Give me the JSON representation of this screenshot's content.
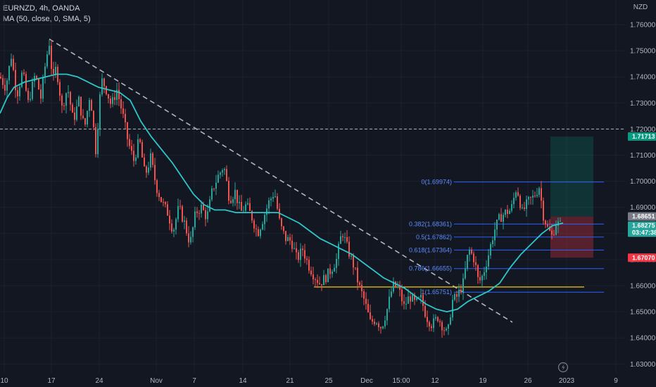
{
  "header": {
    "symbol_line": "EURNZD, 4h, OANDA",
    "indicator_line": "MA (50, close, 0, SMA, 5)",
    "currency": "NZD"
  },
  "chart_data": {
    "type": "candlestick",
    "symbol": "EURNZD",
    "timeframe": "4h",
    "source": "OANDA",
    "currency": "NZD",
    "ylim": [
      1.625,
      1.765
    ],
    "y_ticks": [
      "1.76000",
      "1.75000",
      "1.74000",
      "1.73000",
      "1.72000",
      "1.71000",
      "1.70000",
      "1.69000",
      "1.68000",
      "1.67000",
      "1.66000",
      "1.65000",
      "1.64000",
      "1.63000"
    ],
    "x_ticks": [
      "10",
      "17",
      "24",
      "Nov",
      "7",
      "14",
      "21",
      "25",
      "Dec",
      "15:00",
      "12",
      "19",
      "26",
      "2023",
      "9"
    ],
    "close_path": [
      [
        0,
        1.74
      ],
      [
        8,
        1.736
      ],
      [
        16,
        1.748
      ],
      [
        24,
        1.733
      ],
      [
        32,
        1.742
      ],
      [
        40,
        1.73
      ],
      [
        50,
        1.741
      ],
      [
        58,
        1.732
      ],
      [
        65,
        1.746
      ],
      [
        70,
        1.753
      ],
      [
        75,
        1.738
      ],
      [
        80,
        1.744
      ],
      [
        88,
        1.728
      ],
      [
        96,
        1.736
      ],
      [
        104,
        1.723
      ],
      [
        112,
        1.731
      ],
      [
        120,
        1.72
      ],
      [
        128,
        1.734
      ],
      [
        136,
        1.712
      ],
      [
        144,
        1.739
      ],
      [
        150,
        1.736
      ],
      [
        158,
        1.729
      ],
      [
        166,
        1.735
      ],
      [
        174,
        1.726
      ],
      [
        182,
        1.715
      ],
      [
        190,
        1.708
      ],
      [
        198,
        1.716
      ],
      [
        206,
        1.702
      ],
      [
        214,
        1.709
      ],
      [
        222,
        1.698
      ],
      [
        230,
        1.692
      ],
      [
        238,
        1.688
      ],
      [
        246,
        1.681
      ],
      [
        254,
        1.69
      ],
      [
        262,
        1.684
      ],
      [
        270,
        1.676
      ],
      [
        278,
        1.688
      ],
      [
        286,
        1.69
      ],
      [
        294,
        1.686
      ],
      [
        302,
        1.697
      ],
      [
        310,
        1.702
      ],
      [
        318,
        1.706
      ],
      [
        326,
        1.693
      ],
      [
        334,
        1.696
      ],
      [
        342,
        1.688
      ],
      [
        350,
        1.691
      ],
      [
        358,
        1.686
      ],
      [
        366,
        1.68
      ],
      [
        374,
        1.686
      ],
      [
        382,
        1.692
      ],
      [
        390,
        1.696
      ],
      [
        398,
        1.683
      ],
      [
        406,
        1.678
      ],
      [
        414,
        1.677
      ],
      [
        422,
        1.67
      ],
      [
        430,
        1.674
      ],
      [
        438,
        1.668
      ],
      [
        446,
        1.664
      ],
      [
        454,
        1.661
      ],
      [
        462,
        1.663
      ],
      [
        470,
        1.666
      ],
      [
        478,
        1.67
      ],
      [
        486,
        1.681
      ],
      [
        494,
        1.674
      ],
      [
        502,
        1.668
      ],
      [
        510,
        1.66
      ],
      [
        518,
        1.654
      ],
      [
        526,
        1.646
      ],
      [
        534,
        1.647
      ],
      [
        542,
        1.644
      ],
      [
        550,
        1.651
      ],
      [
        558,
        1.66
      ],
      [
        566,
        1.659
      ],
      [
        574,
        1.652
      ],
      [
        582,
        1.656
      ],
      [
        590,
        1.653
      ],
      [
        598,
        1.655
      ],
      [
        606,
        1.648
      ],
      [
        614,
        1.645
      ],
      [
        622,
        1.648
      ],
      [
        630,
        1.644
      ],
      [
        636,
        1.641
      ],
      [
        642,
        1.654
      ],
      [
        650,
        1.656
      ],
      [
        658,
        1.661
      ],
      [
        666,
        1.674
      ],
      [
        674,
        1.67
      ],
      [
        680,
        1.661
      ],
      [
        686,
        1.664
      ],
      [
        694,
        1.672
      ],
      [
        702,
        1.681
      ],
      [
        710,
        1.686
      ],
      [
        718,
        1.688
      ],
      [
        726,
        1.689
      ],
      [
        734,
        1.698
      ],
      [
        742,
        1.688
      ],
      [
        750,
        1.692
      ],
      [
        758,
        1.694
      ],
      [
        766,
        1.698
      ],
      [
        772,
        1.687
      ],
      [
        778,
        1.682
      ],
      [
        784,
        1.679
      ],
      [
        790,
        1.684
      ],
      [
        798,
        1.683
      ]
    ],
    "ma_50_path": [
      [
        0,
        1.726
      ],
      [
        10,
        1.732
      ],
      [
        20,
        1.736
      ],
      [
        35,
        1.738
      ],
      [
        50,
        1.739
      ],
      [
        65,
        1.74
      ],
      [
        80,
        1.741
      ],
      [
        95,
        1.741
      ],
      [
        110,
        1.74
      ],
      [
        125,
        1.738
      ],
      [
        140,
        1.736
      ],
      [
        155,
        1.735
      ],
      [
        170,
        1.734
      ],
      [
        185,
        1.731
      ],
      [
        200,
        1.723
      ],
      [
        215,
        1.717
      ],
      [
        230,
        1.712
      ],
      [
        245,
        1.707
      ],
      [
        260,
        1.701
      ],
      [
        275,
        1.695
      ],
      [
        290,
        1.691
      ],
      [
        305,
        1.689
      ],
      [
        320,
        1.689
      ],
      [
        335,
        1.688
      ],
      [
        350,
        1.688
      ],
      [
        365,
        1.688
      ],
      [
        380,
        1.688
      ],
      [
        395,
        1.688
      ],
      [
        410,
        1.686
      ],
      [
        425,
        1.684
      ],
      [
        440,
        1.681
      ],
      [
        455,
        1.678
      ],
      [
        470,
        1.676
      ],
      [
        485,
        1.674
      ],
      [
        500,
        1.672
      ],
      [
        515,
        1.669
      ],
      [
        530,
        1.666
      ],
      [
        545,
        1.663
      ],
      [
        560,
        1.661
      ],
      [
        575,
        1.659
      ],
      [
        590,
        1.656
      ],
      [
        605,
        1.653
      ],
      [
        620,
        1.651
      ],
      [
        635,
        1.65
      ],
      [
        650,
        1.651
      ],
      [
        665,
        1.654
      ],
      [
        680,
        1.656
      ],
      [
        695,
        1.658
      ],
      [
        710,
        1.661
      ],
      [
        725,
        1.667
      ],
      [
        740,
        1.672
      ],
      [
        755,
        1.676
      ],
      [
        770,
        1.68
      ],
      [
        785,
        1.683
      ],
      [
        800,
        1.684
      ]
    ],
    "trendline": {
      "from": [
        70,
        1.7545
      ],
      "to": [
        728,
        1.646
      ],
      "style": "dashed"
    },
    "horizontal_level": {
      "price": 1.72,
      "style": "dashed"
    },
    "support_line": {
      "price": 1.6595,
      "color": "#f5c518"
    },
    "fib_retracement": [
      {
        "label": "0(1.69974)",
        "price": 1.69974
      },
      {
        "label": "0.382(1.68361)",
        "price": 1.68361
      },
      {
        "label": "0.5(1.67862)",
        "price": 1.67862
      },
      {
        "label": "0.618(1.67364)",
        "price": 1.67364
      },
      {
        "label": "0.786(1.66655)",
        "price": 1.66655
      },
      {
        "label": "1(1.65751)",
        "price": 1.65751
      }
    ],
    "position": {
      "take_profit": 1.71713,
      "entry": 1.68651,
      "stop_loss": 1.6707
    },
    "price_tags": [
      {
        "label": "1.71713",
        "price": 1.71713,
        "color": "#089981"
      },
      {
        "label": "1.68651",
        "price": 1.68651,
        "color": "#787b86"
      },
      {
        "label": "1.68275",
        "sub": "03:47:38",
        "price": 1.68275,
        "color": "#26a69a"
      },
      {
        "label": "1.67070",
        "price": 1.6707,
        "color": "#f23645"
      }
    ],
    "colors": {
      "up": "#26a69a",
      "down": "#ef5350",
      "ma": "#2ec6c9",
      "fib": "#2962ff",
      "background": "#131722"
    }
  }
}
